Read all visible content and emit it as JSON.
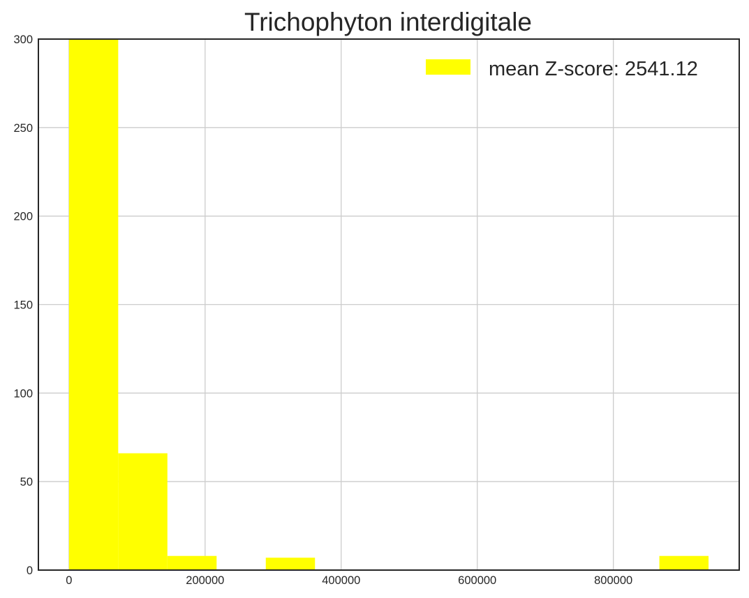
{
  "chart_data": {
    "type": "bar",
    "title": "Trichophyton interdigitale",
    "xlabel": "",
    "ylabel": "",
    "bin_edges": [
      0,
      72300,
      144600,
      216900,
      289200,
      361500,
      433800,
      506100,
      578400,
      650700,
      723000,
      795300,
      867600,
      939900
    ],
    "counts": [
      300,
      66,
      8,
      0,
      7,
      0,
      0,
      0,
      0,
      0,
      0,
      0,
      8
    ],
    "xlim": [
      -45000,
      985000
    ],
    "ylim": [
      0,
      300
    ],
    "xticks": [
      0,
      200000,
      400000,
      600000,
      800000
    ],
    "xtick_labels": [
      "0",
      "200000",
      "400000",
      "600000",
      "800000"
    ],
    "yticks": [
      0,
      50,
      100,
      150,
      200,
      250,
      300
    ],
    "ytick_labels": [
      "0",
      "50",
      "100",
      "150",
      "200",
      "250",
      "300"
    ],
    "grid": true,
    "bar_color": "#ffff00",
    "series": [
      {
        "name": "mean Z-score: 2541.12"
      }
    ],
    "legend_position": "upper right"
  }
}
